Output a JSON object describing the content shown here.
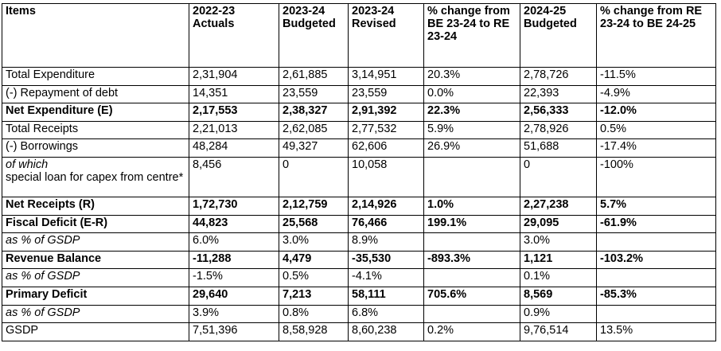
{
  "headers": [
    "Items",
    "2022-23 Actuals",
    "2023-24 Budgeted",
    "2023-24 Revised",
    "% change from BE 23-24 to RE 23-24",
    "2024-25 Budgeted",
    "% change from RE 23-24 to BE 24-25"
  ],
  "rows": [
    {
      "item": "Total Expenditure",
      "a2223": "2,31,904",
      "be2324": "2,61,885",
      "re2324": "3,14,951",
      "chg_be_re": "20.3%",
      "be2425": "2,78,726",
      "chg_re_be": "-11.5%"
    },
    {
      "item": "(-) Repayment of debt",
      "a2223": "14,351",
      "be2324": "23,559",
      "re2324": "23,559",
      "chg_be_re": "0.0%",
      "be2425": "22,393",
      "chg_re_be": "-4.9%"
    },
    {
      "item": "Net Expenditure (E)",
      "a2223": "2,17,553",
      "be2324": "2,38,327",
      "re2324": "2,91,392",
      "chg_be_re": "22.3%",
      "be2425": "2,56,333",
      "chg_re_be": "-12.0%"
    },
    {
      "item": "Total Receipts",
      "a2223": "2,21,013",
      "be2324": "2,62,085",
      "re2324": "2,77,532",
      "chg_be_re": "5.9%",
      "be2425": "2,78,926",
      "chg_re_be": "0.5%"
    },
    {
      "item": "(-) Borrowings",
      "a2223": "48,284",
      "be2324": "49,327",
      "re2324": "62,606",
      "chg_be_re": "26.9%",
      "be2425": "51,688",
      "chg_re_be": "-17.4%"
    },
    {
      "item_italic": "of which",
      "item": "special loan for capex from centre*",
      "a2223": "8,456",
      "be2324": "0",
      "re2324": "10,058",
      "chg_be_re": "",
      "be2425": "0",
      "chg_re_be": "-100%"
    },
    {
      "item": "Net Receipts (R)",
      "a2223": "1,72,730",
      "be2324": "2,12,759",
      "re2324": "2,14,926",
      "chg_be_re": "1.0%",
      "be2425": "2,27,238",
      "chg_re_be": "5.7%"
    },
    {
      "item": "Fiscal Deficit (E-R)",
      "a2223": "44,823",
      "be2324": "25,568",
      "re2324": "76,466",
      "chg_be_re": "199.1%",
      "be2425": "29,095",
      "chg_re_be": "-61.9%"
    },
    {
      "item": "as % of GSDP",
      "a2223": "6.0%",
      "be2324": "3.0%",
      "re2324": "8.9%",
      "chg_be_re": "",
      "be2425": "3.0%",
      "chg_re_be": ""
    },
    {
      "item": "Revenue Balance",
      "a2223": "-11,288",
      "be2324": "4,479",
      "re2324": "-35,530",
      "chg_be_re": "-893.3%",
      "be2425": "1,121",
      "chg_re_be": "-103.2%"
    },
    {
      "item": "as % of GSDP",
      "a2223": "-1.5%",
      "be2324": "0.5%",
      "re2324": "-4.1%",
      "chg_be_re": "",
      "be2425": "0.1%",
      "chg_re_be": ""
    },
    {
      "item": "Primary Deficit",
      "a2223": "29,640",
      "be2324": "7,213",
      "re2324": "58,111",
      "chg_be_re": "705.6%",
      "be2425": "8,569",
      "chg_re_be": "-85.3%"
    },
    {
      "item": "as % of GSDP",
      "a2223": "3.9%",
      "be2324": "0.8%",
      "re2324": "6.8%",
      "chg_be_re": "",
      "be2425": "0.9%",
      "chg_re_be": ""
    },
    {
      "item": "GSDP",
      "a2223": "7,51,396",
      "be2324": "8,58,928",
      "re2324": "8,60,238",
      "chg_be_re": "0.2%",
      "be2425": "9,76,514",
      "chg_re_be": "13.5%"
    }
  ]
}
